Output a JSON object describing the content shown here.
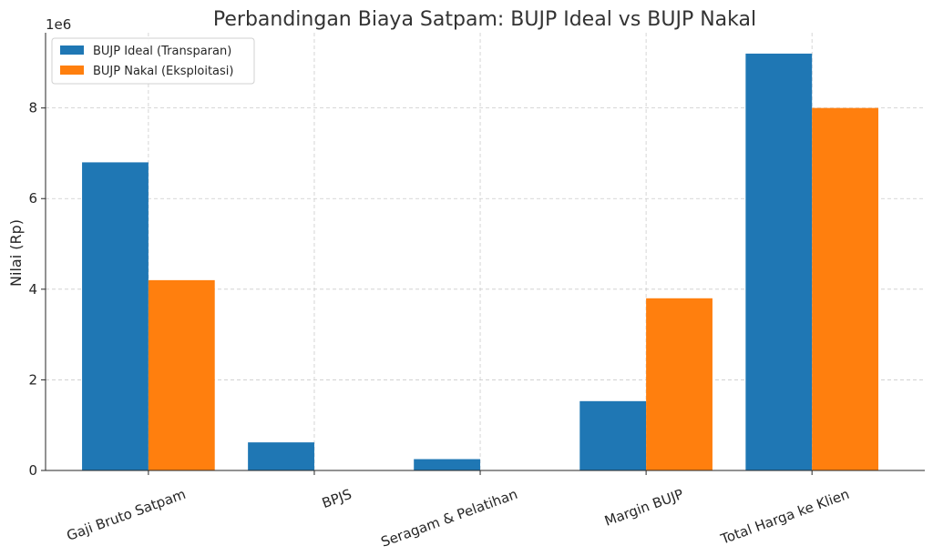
{
  "chart_data": {
    "type": "bar",
    "title": "Perbandingan Biaya Satpam: BUJP Ideal vs BUJP Nakal",
    "xlabel": "",
    "ylabel": "Nilai (Rp)",
    "offset_text": "1e6",
    "categories": [
      "Gaji Bruto Satpam",
      "BPJS",
      "Seragam & Pelatihan",
      "Margin BUJP",
      "Total Harga ke Klien"
    ],
    "series": [
      {
        "name": "BUJP Ideal (Transparan)",
        "color": "#1f77b4",
        "values": [
          6800000,
          620000,
          250000,
          1530000,
          9200000
        ]
      },
      {
        "name": "BUJP Nakal (Eksploitasi)",
        "color": "#ff7f0e",
        "values": [
          4200000,
          0,
          0,
          3800000,
          8000000
        ]
      }
    ],
    "ylim": [
      0,
      9660000
    ],
    "yticks": [
      0,
      2000000,
      4000000,
      6000000,
      8000000
    ],
    "ytick_labels": [
      "0",
      "2",
      "4",
      "6",
      "8"
    ],
    "grid": true,
    "legend_position": "top-left"
  }
}
